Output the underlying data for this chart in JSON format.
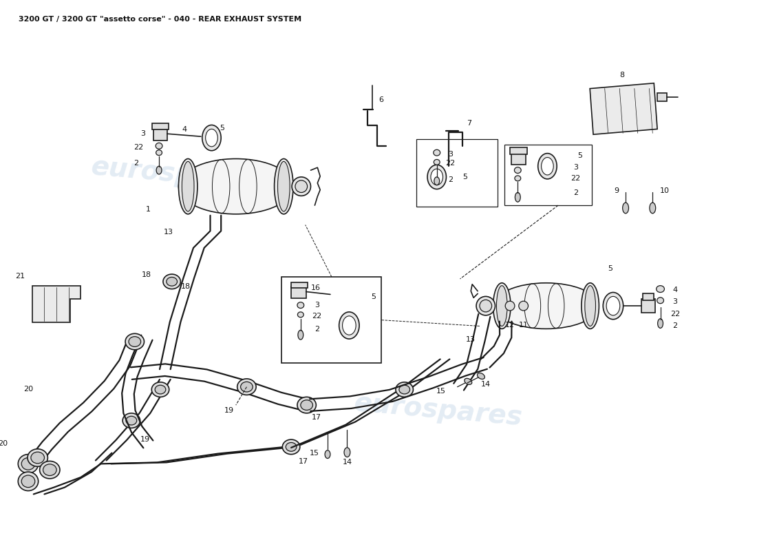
{
  "title": "3200 GT / 3200 GT \"assetto corse\" - 040 - REAR EXHAUST SYSTEM",
  "bg": "#ffffff",
  "lc": "#1a1a1a",
  "wm_color": "#b0c8e0",
  "wm_alpha": 0.35
}
